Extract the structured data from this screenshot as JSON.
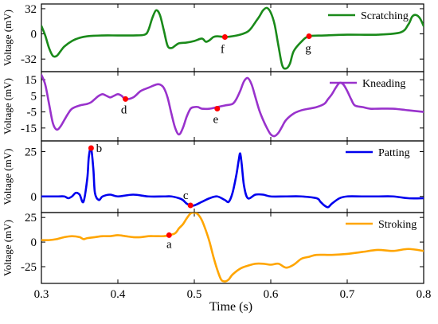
{
  "chart_data": {
    "type": "line",
    "shared_x": {
      "label": "Time (s)",
      "range": [
        0.3,
        0.8
      ],
      "ticks": [
        0.3,
        0.4,
        0.5,
        0.6,
        0.7,
        0.8
      ],
      "tick_labels": [
        "0.3",
        "0.4",
        "0.5",
        "0.6",
        "0.7",
        "0.8"
      ]
    },
    "panels": [
      {
        "ylabel": "Voltage (mV)",
        "ylim": [
          -48,
          38
        ],
        "yticks": [
          32,
          0,
          -32
        ],
        "ytick_labels": [
          "32",
          "0",
          "-32"
        ],
        "series": [
          {
            "name": "Scratching",
            "color": "#1a8a1a",
            "x": [
              0.3,
              0.305,
              0.31,
              0.315,
              0.32,
              0.325,
              0.33,
              0.34,
              0.35,
              0.36,
              0.38,
              0.4,
              0.42,
              0.435,
              0.44,
              0.445,
              0.45,
              0.455,
              0.46,
              0.465,
              0.47,
              0.475,
              0.48,
              0.49,
              0.5,
              0.51,
              0.515,
              0.52,
              0.525,
              0.53,
              0.54,
              0.55,
              0.56,
              0.57,
              0.575,
              0.58,
              0.585,
              0.59,
              0.595,
              0.6,
              0.605,
              0.61,
              0.615,
              0.62,
              0.625,
              0.63,
              0.64,
              0.65,
              0.67,
              0.7,
              0.74,
              0.77,
              0.78,
              0.785,
              0.79,
              0.795,
              0.8
            ],
            "y": [
              10,
              -2,
              -18,
              -28,
              -28,
              -22,
              -16,
              -9,
              -5,
              -3,
              -2,
              -2,
              -2,
              -1,
              5,
              20,
              30,
              24,
              5,
              -15,
              -18,
              -15,
              -12,
              -11,
              -9,
              -6,
              -10,
              -8,
              -4,
              -3,
              -4,
              -3,
              -1,
              3,
              8,
              15,
              22,
              30,
              33,
              27,
              12,
              -15,
              -40,
              -44,
              -38,
              -22,
              -10,
              -3,
              -2,
              -1,
              -1,
              2,
              12,
              22,
              24,
              20,
              10
            ]
          }
        ]
      },
      {
        "ylabel": "Voltage (mV)",
        "ylim": [
          -23,
          20
        ],
        "yticks": [
          15,
          5,
          -5,
          -15
        ],
        "ytick_labels": [
          "15",
          "5",
          "-5",
          "-15"
        ],
        "series": [
          {
            "name": "Kneading",
            "color": "#9932cc",
            "x": [
              0.3,
              0.305,
              0.31,
              0.315,
              0.32,
              0.325,
              0.33,
              0.335,
              0.34,
              0.35,
              0.36,
              0.365,
              0.37,
              0.375,
              0.38,
              0.385,
              0.39,
              0.395,
              0.4,
              0.405,
              0.41,
              0.42,
              0.43,
              0.44,
              0.45,
              0.455,
              0.46,
              0.465,
              0.47,
              0.475,
              0.48,
              0.485,
              0.49,
              0.495,
              0.5,
              0.505,
              0.51,
              0.52,
              0.53,
              0.54,
              0.55,
              0.555,
              0.56,
              0.565,
              0.57,
              0.575,
              0.58,
              0.585,
              0.59,
              0.595,
              0.6,
              0.605,
              0.61,
              0.615,
              0.62,
              0.63,
              0.64,
              0.65,
              0.66,
              0.67,
              0.675,
              0.68,
              0.685,
              0.69,
              0.695,
              0.7,
              0.705,
              0.71,
              0.72,
              0.73,
              0.74,
              0.76,
              0.78,
              0.8
            ],
            "y": [
              18,
              12,
              0,
              -12,
              -16,
              -14,
              -10,
              -6,
              -3,
              -1,
              0,
              1,
              3,
              5,
              6,
              5,
              4,
              5,
              6,
              5,
              3,
              4,
              8,
              10,
              12,
              12,
              10,
              4,
              -6,
              -15,
              -19,
              -15,
              -8,
              -3,
              -2,
              -2,
              -3,
              -3,
              -2,
              -1,
              0,
              3,
              8,
              14,
              16,
              12,
              4,
              -4,
              -10,
              -15,
              -19,
              -20,
              -18,
              -14,
              -10,
              -6,
              -4,
              -3,
              -2,
              0,
              3,
              6,
              10,
              13,
              12,
              8,
              3,
              -1,
              -2,
              -3,
              -3,
              -3,
              -4,
              -5
            ]
          }
        ]
      },
      {
        "ylabel": "Voltage (mV)",
        "ylim": [
          -9,
          31
        ],
        "yticks": [
          25,
          0
        ],
        "ytick_labels": [
          "25",
          "0"
        ],
        "series": [
          {
            "name": "Patting",
            "color": "#0000ee",
            "x": [
              0.3,
              0.32,
              0.33,
              0.335,
              0.34,
              0.345,
              0.35,
              0.355,
              0.36,
              0.362,
              0.365,
              0.368,
              0.37,
              0.375,
              0.38,
              0.39,
              0.4,
              0.42,
              0.44,
              0.46,
              0.47,
              0.48,
              0.485,
              0.49,
              0.495,
              0.5,
              0.51,
              0.52,
              0.53,
              0.54,
              0.545,
              0.55,
              0.555,
              0.558,
              0.56,
              0.562,
              0.565,
              0.57,
              0.58,
              0.59,
              0.6,
              0.62,
              0.64,
              0.66,
              0.665,
              0.67,
              0.675,
              0.68,
              0.69,
              0.7,
              0.72,
              0.74,
              0.76,
              0.78,
              0.8
            ],
            "y": [
              0,
              0,
              0,
              -1,
              0,
              2,
              1,
              -3,
              10,
              22,
              27,
              15,
              2,
              -2,
              0,
              1,
              0,
              1,
              0,
              0,
              0,
              -1,
              -2,
              -4,
              -5,
              -5,
              -3,
              -1,
              0,
              -2,
              -3,
              2,
              12,
              20,
              24,
              18,
              6,
              -1,
              1,
              1,
              0,
              0,
              0,
              -1,
              -3,
              -5,
              -6,
              -4,
              -1,
              0,
              0,
              0,
              0,
              -1,
              -1
            ]
          }
        ]
      },
      {
        "ylabel": "Voltage (mV)",
        "ylim": [
          -42,
          30
        ],
        "yticks": [
          25,
          0,
          -25
        ],
        "ytick_labels": [
          "25",
          "0",
          "-25"
        ],
        "series": [
          {
            "name": "Stroking",
            "color": "#ffa500",
            "x": [
              0.3,
              0.31,
              0.32,
              0.33,
              0.34,
              0.35,
              0.355,
              0.36,
              0.37,
              0.38,
              0.39,
              0.4,
              0.41,
              0.42,
              0.43,
              0.44,
              0.45,
              0.46,
              0.467,
              0.475,
              0.48,
              0.485,
              0.49,
              0.495,
              0.5,
              0.505,
              0.51,
              0.515,
              0.52,
              0.525,
              0.53,
              0.535,
              0.54,
              0.545,
              0.55,
              0.56,
              0.57,
              0.58,
              0.59,
              0.6,
              0.61,
              0.62,
              0.63,
              0.64,
              0.65,
              0.66,
              0.68,
              0.7,
              0.72,
              0.74,
              0.76,
              0.78,
              0.8
            ],
            "y": [
              2,
              2,
              3,
              5,
              6,
              5,
              3,
              4,
              5,
              6,
              6,
              7,
              6,
              5,
              5,
              6,
              6,
              6,
              7,
              9,
              14,
              18,
              24,
              29,
              30,
              28,
              22,
              12,
              0,
              -15,
              -28,
              -38,
              -40,
              -38,
              -33,
              -27,
              -24,
              -22,
              -22,
              -23,
              -22,
              -26,
              -23,
              -17,
              -15,
              -13,
              -13,
              -12,
              -10,
              -8,
              -9,
              -7,
              -9
            ]
          }
        ]
      }
    ],
    "annotations": [
      {
        "label": "a",
        "panel": 4,
        "x": 0.467,
        "y": 7,
        "color": "#ff0000"
      },
      {
        "label": "b",
        "panel": 3,
        "x": 0.365,
        "y": 27,
        "color": "#ff0000"
      },
      {
        "label": "c",
        "panel": 3,
        "x": 0.495,
        "y": -5,
        "color": "#ff0000"
      },
      {
        "label": "d",
        "panel": 2,
        "x": 0.41,
        "y": 3,
        "color": "#ff0000"
      },
      {
        "label": "e",
        "panel": 2,
        "x": 0.53,
        "y": -3,
        "color": "#ff0000"
      },
      {
        "label": "f",
        "panel": 1,
        "x": 0.54,
        "y": -4,
        "color": "#ff0000"
      },
      {
        "label": "g",
        "panel": 1,
        "x": 0.65,
        "y": -3,
        "color": "#ff0000"
      }
    ]
  }
}
